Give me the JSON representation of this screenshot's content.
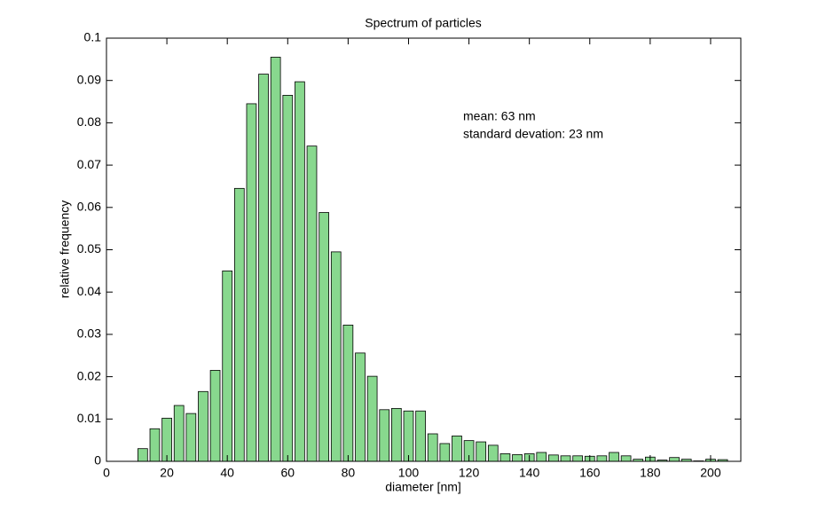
{
  "chart_data": {
    "type": "bar",
    "title": "Spectrum of particles",
    "xlabel": "diameter [nm]",
    "ylabel": "relative frequency",
    "annotations": [
      "mean: 63 nm",
      "standard devation: 23 nm"
    ],
    "color": "#88d88e",
    "x": [
      12,
      16,
      20,
      24,
      28,
      32,
      36,
      40,
      44,
      48,
      52,
      56,
      60,
      64,
      68,
      72,
      76,
      80,
      84,
      88,
      92,
      96,
      100,
      104,
      108,
      112,
      116,
      120,
      124,
      128,
      132,
      136,
      140,
      144,
      148,
      152,
      156,
      160,
      164,
      168,
      172,
      176,
      180,
      184,
      188,
      192,
      196,
      200,
      204
    ],
    "values": [
      0.003,
      0.0077,
      0.0102,
      0.0132,
      0.0113,
      0.0165,
      0.0215,
      0.045,
      0.0645,
      0.0845,
      0.0915,
      0.0955,
      0.0865,
      0.0897,
      0.0745,
      0.0588,
      0.0495,
      0.0322,
      0.0256,
      0.0201,
      0.0122,
      0.0125,
      0.0119,
      0.0119,
      0.0065,
      0.0042,
      0.006,
      0.0049,
      0.0046,
      0.0038,
      0.0018,
      0.0016,
      0.0018,
      0.0021,
      0.0015,
      0.0013,
      0.0013,
      0.0012,
      0.0013,
      0.0021,
      0.0013,
      0.0005,
      0.001,
      0.0003,
      0.0009,
      0.0005,
      0.0001,
      0.0005,
      0.0004
    ],
    "xlim": [
      0,
      210
    ],
    "xticks": [
      0,
      20,
      40,
      60,
      80,
      100,
      120,
      140,
      160,
      180,
      200
    ],
    "ylim": [
      0,
      0.1
    ],
    "yticks": [
      0,
      0.01,
      0.02,
      0.03,
      0.04,
      0.05,
      0.06,
      0.07,
      0.08,
      0.09,
      0.1
    ]
  }
}
